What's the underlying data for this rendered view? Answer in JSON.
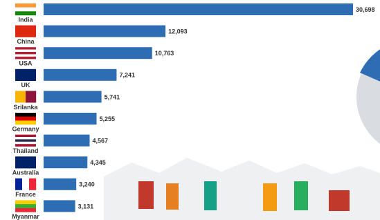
{
  "chart_data": {
    "type": "bar",
    "orientation": "horizontal",
    "categories": [
      "India",
      "China",
      "USA",
      "UK",
      "Srilanka",
      "Germany",
      "Thailand",
      "Australia",
      "France",
      "Myanmar"
    ],
    "values": [
      30698,
      12093,
      10763,
      7241,
      5741,
      5255,
      4567,
      4345,
      3240,
      3131
    ],
    "value_labels": [
      "30,698",
      "12,093",
      "10,763",
      "7,241",
      "5,741",
      "5,255",
      "4,567",
      "4,345",
      "3,240",
      "3,131"
    ],
    "color": "#2e6db4"
  }
}
